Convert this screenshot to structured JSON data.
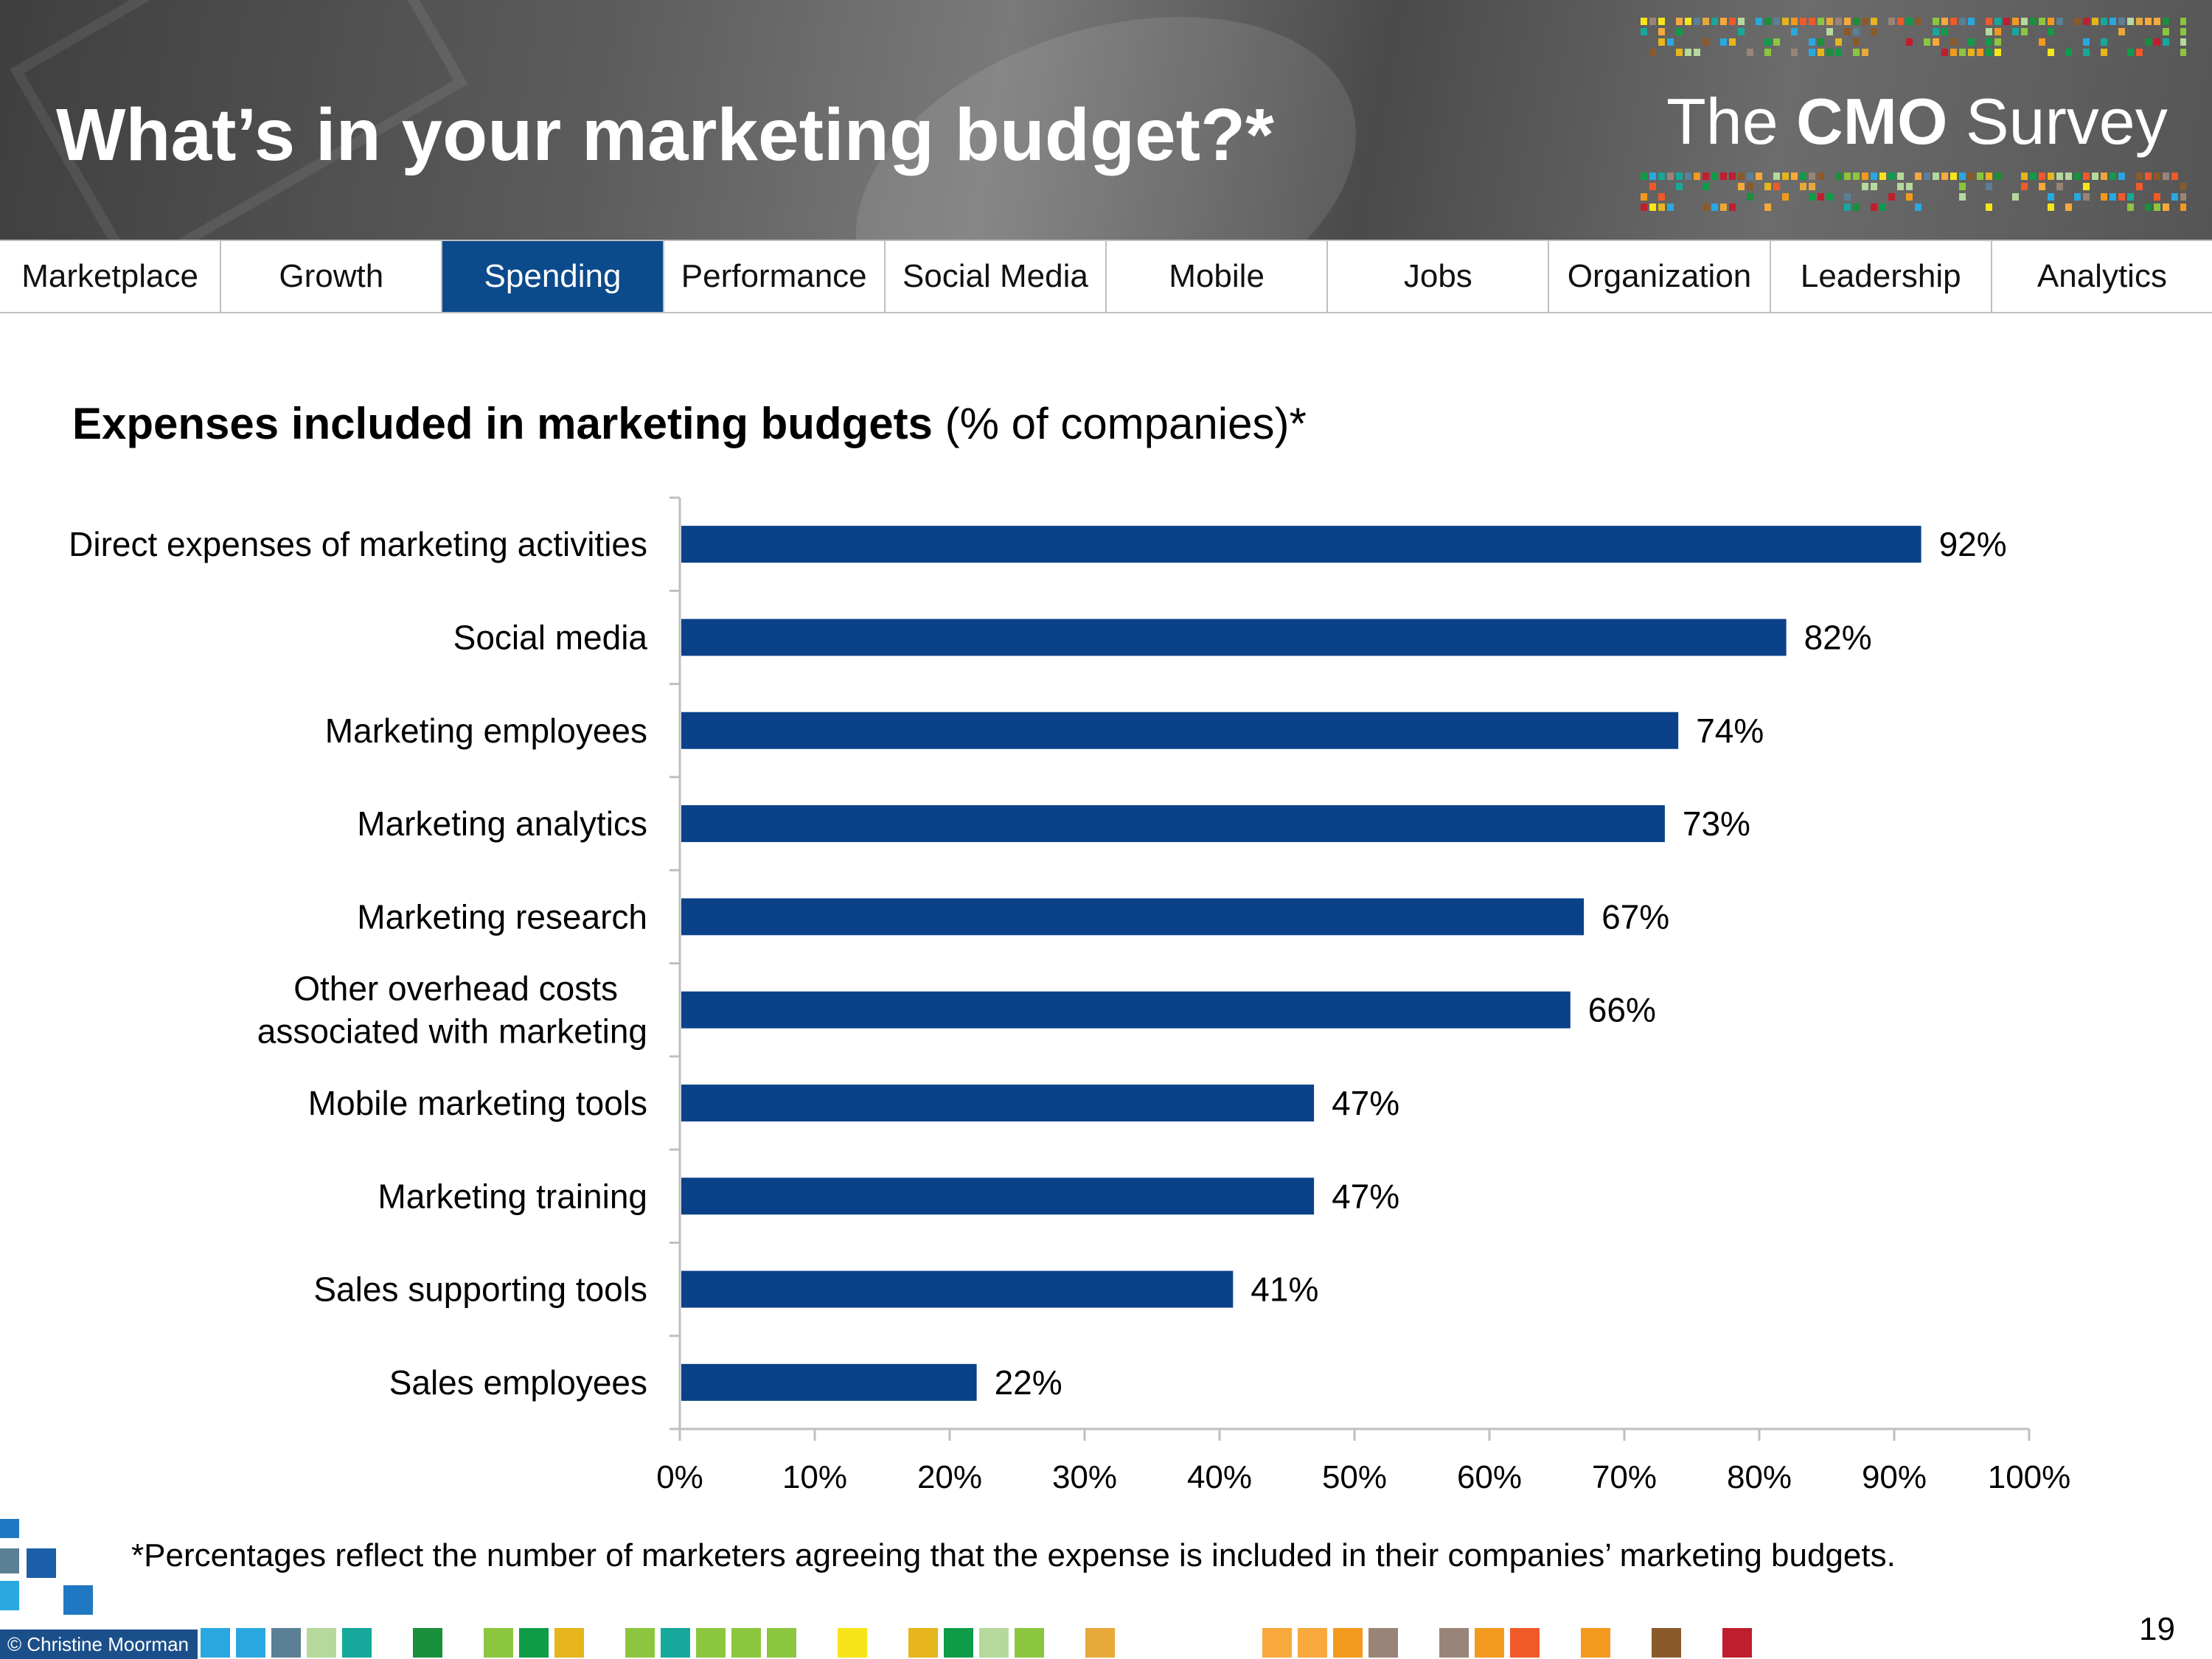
{
  "header": {
    "title": "What’s in your marketing budget?*",
    "logo": {
      "prefix": "The ",
      "brand": "CMO",
      "suffix": " Survey"
    }
  },
  "nav": {
    "tabs": [
      {
        "label": "Marketplace"
      },
      {
        "label": "Growth"
      },
      {
        "label": "Spending",
        "active": true
      },
      {
        "label": "Performance"
      },
      {
        "label": "Social Media"
      },
      {
        "label": "Mobile"
      },
      {
        "label": "Jobs"
      },
      {
        "label": "Organization"
      },
      {
        "label": "Leadership"
      },
      {
        "label": "Analytics"
      }
    ]
  },
  "chart_title": {
    "bold": "Expenses included in marketing budgets",
    "normal": " (% of companies)*"
  },
  "chart_data": {
    "type": "bar",
    "orientation": "horizontal",
    "title": "Expenses included in marketing budgets (% of companies)*",
    "categories": [
      "Direct expenses of marketing activities",
      "Social media",
      "Marketing employees",
      "Marketing analytics",
      "Marketing research",
      "Other overhead costs associated with marketing",
      "Mobile marketing tools",
      "Marketing training",
      "Sales supporting tools",
      "Sales employees"
    ],
    "category_lines": [
      [
        "Direct expenses of marketing activities"
      ],
      [
        "Social media"
      ],
      [
        "Marketing employees"
      ],
      [
        "Marketing analytics"
      ],
      [
        "Marketing research"
      ],
      [
        "Other overhead costs",
        "associated with marketing"
      ],
      [
        "Mobile marketing tools"
      ],
      [
        "Marketing training"
      ],
      [
        "Sales supporting tools"
      ],
      [
        "Sales employees"
      ]
    ],
    "values": [
      92,
      82,
      74,
      73,
      67,
      66,
      47,
      47,
      41,
      22
    ],
    "data_labels": [
      "92%",
      "82%",
      "74%",
      "73%",
      "67%",
      "66%",
      "47%",
      "47%",
      "41%",
      "22%"
    ],
    "xlim": [
      0,
      100
    ],
    "xticks": [
      0,
      10,
      20,
      30,
      40,
      50,
      60,
      70,
      80,
      90,
      100
    ],
    "xtick_labels": [
      "0%",
      "10%",
      "20%",
      "30%",
      "40%",
      "50%",
      "60%",
      "70%",
      "80%",
      "90%",
      "100%"
    ],
    "grid": false,
    "legend": "none",
    "bar_color": "#0b4189"
  },
  "footnote": "*Percentages reflect the number of marketers agreeing that the expense is included in their companies’ marketing budgets.",
  "copyright": "© Christine Moorman",
  "page_number": "19",
  "colors": {
    "accent": "#0b4a8b",
    "bar": "#0b4189",
    "palette": [
      "#29a8e0",
      "#5b7f95",
      "#b5d99c",
      "#16a89a",
      "#1a8f3c",
      "#8cc63f",
      "#0f9b48",
      "#e5b51b",
      "#f7e51a",
      "#e7a93a",
      "#f8a93c",
      "#f39a1e",
      "#9a8478",
      "#f05a28",
      "#8a5a2b",
      "#be1e2d"
    ]
  }
}
